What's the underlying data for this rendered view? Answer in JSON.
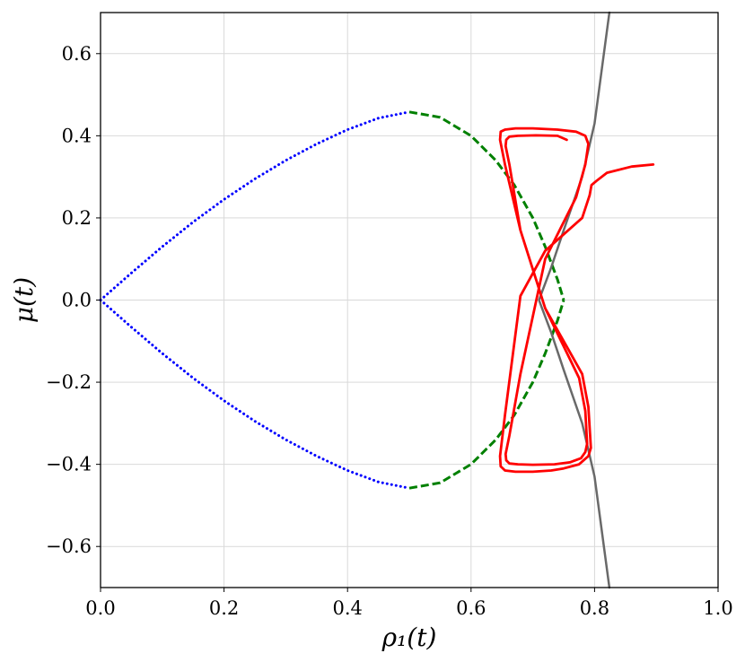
{
  "chart_data": {
    "type": "line",
    "xlabel": "ρ₁(t)",
    "ylabel": "μ(t)",
    "xlim": [
      0.0,
      1.0
    ],
    "ylim": [
      -0.7,
      0.7
    ],
    "grid": true,
    "x_ticks": [
      0.0,
      0.2,
      0.4,
      0.6,
      0.8,
      1.0
    ],
    "x_tick_labels": [
      "0.0",
      "0.2",
      "0.4",
      "0.6",
      "0.8",
      "1.0"
    ],
    "y_ticks": [
      0.6,
      0.4,
      0.2,
      0.0,
      -0.2,
      -0.4,
      -0.6
    ],
    "y_tick_labels": [
      "0.6",
      "0.4",
      "0.2",
      "0.0",
      "−0.2",
      "−0.4",
      "−0.6"
    ],
    "series": [
      {
        "color": "#0000ff",
        "style": "dotted",
        "x": [
          0.0,
          0.05,
          0.1,
          0.15,
          0.2,
          0.25,
          0.3,
          0.35,
          0.4,
          0.45,
          0.5
        ],
        "y": [
          0.0,
          0.066,
          0.13,
          0.19,
          0.245,
          0.295,
          0.34,
          0.38,
          0.415,
          0.443,
          0.458
        ]
      },
      {
        "color": "#0000ff",
        "style": "dotted",
        "x": [
          0.0,
          0.05,
          0.1,
          0.15,
          0.2,
          0.25,
          0.3,
          0.35,
          0.4,
          0.45,
          0.5
        ],
        "y": [
          0.0,
          -0.066,
          -0.13,
          -0.19,
          -0.245,
          -0.295,
          -0.34,
          -0.38,
          -0.415,
          -0.443,
          -0.458
        ]
      },
      {
        "color": "#008000",
        "style": "dashed",
        "x": [
          0.5,
          0.55,
          0.6,
          0.64,
          0.67,
          0.7,
          0.72,
          0.74,
          0.75
        ],
        "y": [
          0.458,
          0.445,
          0.4,
          0.34,
          0.28,
          0.2,
          0.13,
          0.05,
          0.0
        ]
      },
      {
        "color": "#008000",
        "style": "dashed",
        "x": [
          0.5,
          0.55,
          0.6,
          0.64,
          0.67,
          0.7,
          0.72,
          0.74,
          0.75
        ],
        "y": [
          -0.458,
          -0.445,
          -0.4,
          -0.34,
          -0.28,
          -0.2,
          -0.13,
          -0.05,
          0.0
        ]
      },
      {
        "color": "#696969",
        "style": "solid",
        "x": [
          0.824,
          0.8,
          0.78,
          0.75,
          0.73,
          0.715,
          0.71,
          0.715,
          0.73,
          0.75,
          0.78,
          0.8,
          0.824
        ],
        "y": [
          0.7,
          0.43,
          0.3,
          0.17,
          0.08,
          0.02,
          0.0,
          -0.02,
          -0.08,
          -0.17,
          -0.3,
          -0.43,
          -0.7
        ]
      },
      {
        "color": "#ff0000",
        "style": "solid",
        "x": [
          0.895,
          0.86,
          0.82,
          0.803,
          0.795,
          0.792,
          0.78,
          0.72,
          0.68,
          0.655,
          0.647,
          0.648,
          0.655,
          0.672,
          0.7,
          0.73,
          0.75,
          0.775,
          0.79,
          0.794,
          0.79,
          0.78,
          0.72,
          0.68,
          0.655,
          0.647,
          0.648,
          0.655,
          0.672,
          0.7,
          0.74,
          0.77,
          0.785,
          0.79,
          0.785,
          0.77,
          0.72,
          0.68,
          0.662,
          0.656,
          0.657,
          0.662,
          0.676,
          0.7,
          0.735,
          0.76,
          0.778,
          0.785,
          0.788,
          0.785,
          0.775,
          0.72,
          0.68,
          0.662,
          0.656,
          0.657,
          0.662,
          0.676,
          0.705,
          0.74,
          0.755
        ],
        "y": [
          0.33,
          0.325,
          0.31,
          0.29,
          0.28,
          0.255,
          0.2,
          0.12,
          0.01,
          -0.28,
          -0.38,
          -0.405,
          -0.415,
          -0.418,
          -0.418,
          -0.415,
          -0.41,
          -0.4,
          -0.38,
          -0.36,
          -0.26,
          -0.18,
          -0.02,
          0.17,
          0.33,
          0.39,
          0.41,
          0.415,
          0.418,
          0.418,
          0.415,
          0.41,
          0.4,
          0.38,
          0.33,
          0.25,
          0.1,
          -0.18,
          -0.33,
          -0.375,
          -0.39,
          -0.398,
          -0.4,
          -0.401,
          -0.4,
          -0.395,
          -0.385,
          -0.37,
          -0.35,
          -0.27,
          -0.19,
          -0.02,
          0.17,
          0.33,
          0.375,
          0.39,
          0.398,
          0.4,
          0.401,
          0.4,
          0.39
        ]
      }
    ]
  }
}
